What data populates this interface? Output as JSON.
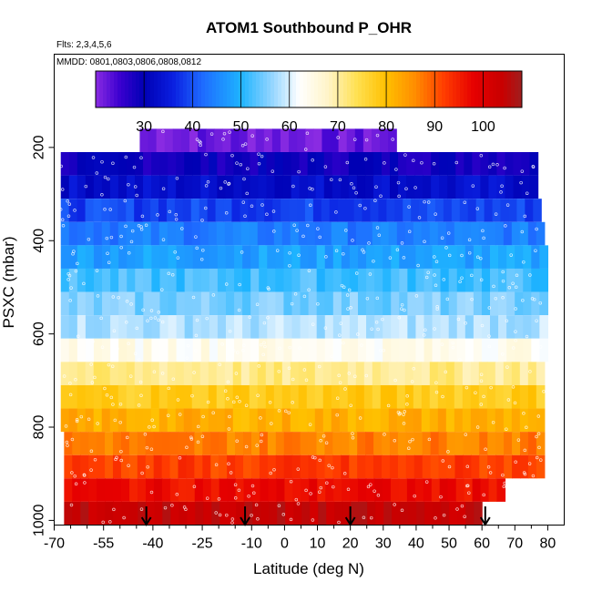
{
  "chart_data": {
    "type": "heatmap",
    "title": "ATOM1 Southbound P_OHR",
    "subtitle_flights": "Flts: 2,3,4,5,6",
    "subtitle_dates": "MMDD: 0801,0803,0806,0808,0812",
    "xlabel": "Latitude (deg N)",
    "ylabel": "PSXC (mbar)",
    "xlim": [
      -70,
      85
    ],
    "ylim": [
      1010,
      0
    ],
    "x_ticks": [
      -70,
      -55,
      -40,
      -25,
      -10,
      0,
      10,
      20,
      30,
      40,
      50,
      60,
      70,
      80
    ],
    "x_tick_labels": [
      "-70",
      "-55",
      "-40",
      "-25",
      "-10",
      "0",
      "10",
      "20",
      "30",
      "40",
      "50",
      "60",
      "70",
      "80"
    ],
    "x_minor_ticks": [
      -65,
      -60,
      -50,
      -45,
      -35,
      -30,
      -20,
      -15,
      -5,
      5,
      15,
      25,
      35,
      45,
      55,
      65,
      75
    ],
    "y_ticks": [
      200,
      400,
      600,
      800,
      1000
    ],
    "y_tick_labels": [
      "200",
      "400",
      "600",
      "800",
      "1000"
    ],
    "colorbar": {
      "range": [
        20,
        108
      ],
      "ticks": [
        30,
        40,
        50,
        60,
        70,
        80,
        90,
        100
      ],
      "tick_labels": [
        "30",
        "40",
        "50",
        "60",
        "70",
        "80",
        "90",
        "100"
      ],
      "stops": [
        {
          "v": 20,
          "c": "#8a2be2"
        },
        {
          "v": 25,
          "c": "#3a00d0"
        },
        {
          "v": 30,
          "c": "#0000b4"
        },
        {
          "v": 36,
          "c": "#0a1fe0"
        },
        {
          "v": 42,
          "c": "#1e6aff"
        },
        {
          "v": 50,
          "c": "#1eb4ff"
        },
        {
          "v": 56,
          "c": "#8cd2ff"
        },
        {
          "v": 62,
          "c": "#ffffff"
        },
        {
          "v": 68,
          "c": "#fff4c8"
        },
        {
          "v": 74,
          "c": "#ffe050"
        },
        {
          "v": 80,
          "c": "#ffc000"
        },
        {
          "v": 86,
          "c": "#ff8c00"
        },
        {
          "v": 92,
          "c": "#ff3c00"
        },
        {
          "v": 98,
          "c": "#e60000"
        },
        {
          "v": 104,
          "c": "#c80000"
        },
        {
          "v": 108,
          "c": "#a01e1e"
        }
      ]
    },
    "layers": [
      {
        "p_top": 160,
        "p_bot": 210,
        "lat_min": -44,
        "lat_max": 34,
        "value": 22
      },
      {
        "p_top": 210,
        "p_bot": 260,
        "lat_min": -68,
        "lat_max": 77,
        "value": 29
      },
      {
        "p_top": 260,
        "p_bot": 310,
        "lat_min": -68,
        "lat_max": 77,
        "value": 33
      },
      {
        "p_top": 310,
        "p_bot": 360,
        "lat_min": -68,
        "lat_max": 78,
        "value": 39
      },
      {
        "p_top": 360,
        "p_bot": 410,
        "lat_min": -68,
        "lat_max": 79,
        "value": 44
      },
      {
        "p_top": 410,
        "p_bot": 460,
        "lat_min": -68,
        "lat_max": 80,
        "value": 48
      },
      {
        "p_top": 460,
        "p_bot": 510,
        "lat_min": -68,
        "lat_max": 80,
        "value": 52
      },
      {
        "p_top": 510,
        "p_bot": 560,
        "lat_min": -68,
        "lat_max": 80,
        "value": 55
      },
      {
        "p_top": 560,
        "p_bot": 610,
        "lat_min": -68,
        "lat_max": 80,
        "value": 58
      },
      {
        "p_top": 610,
        "p_bot": 660,
        "lat_min": -68,
        "lat_max": 80,
        "value": 64
      },
      {
        "p_top": 660,
        "p_bot": 710,
        "lat_min": -68,
        "lat_max": 79,
        "value": 71
      },
      {
        "p_top": 710,
        "p_bot": 760,
        "lat_min": -68,
        "lat_max": 79,
        "value": 78
      },
      {
        "p_top": 760,
        "p_bot": 810,
        "lat_min": -68,
        "lat_max": 79,
        "value": 82
      },
      {
        "p_top": 810,
        "p_bot": 860,
        "lat_min": -67,
        "lat_max": 79,
        "value": 87
      },
      {
        "p_top": 860,
        "p_bot": 910,
        "lat_min": -67,
        "lat_max": 79,
        "value": 92
      },
      {
        "p_top": 910,
        "p_bot": 960,
        "lat_min": -67,
        "lat_max": 67,
        "value": 97
      },
      {
        "p_top": 960,
        "p_bot": 1010,
        "lat_min": -67,
        "lat_max": 60,
        "value": 104
      }
    ],
    "flight_markers_lat": [
      -42,
      -12,
      20,
      61
    ]
  }
}
